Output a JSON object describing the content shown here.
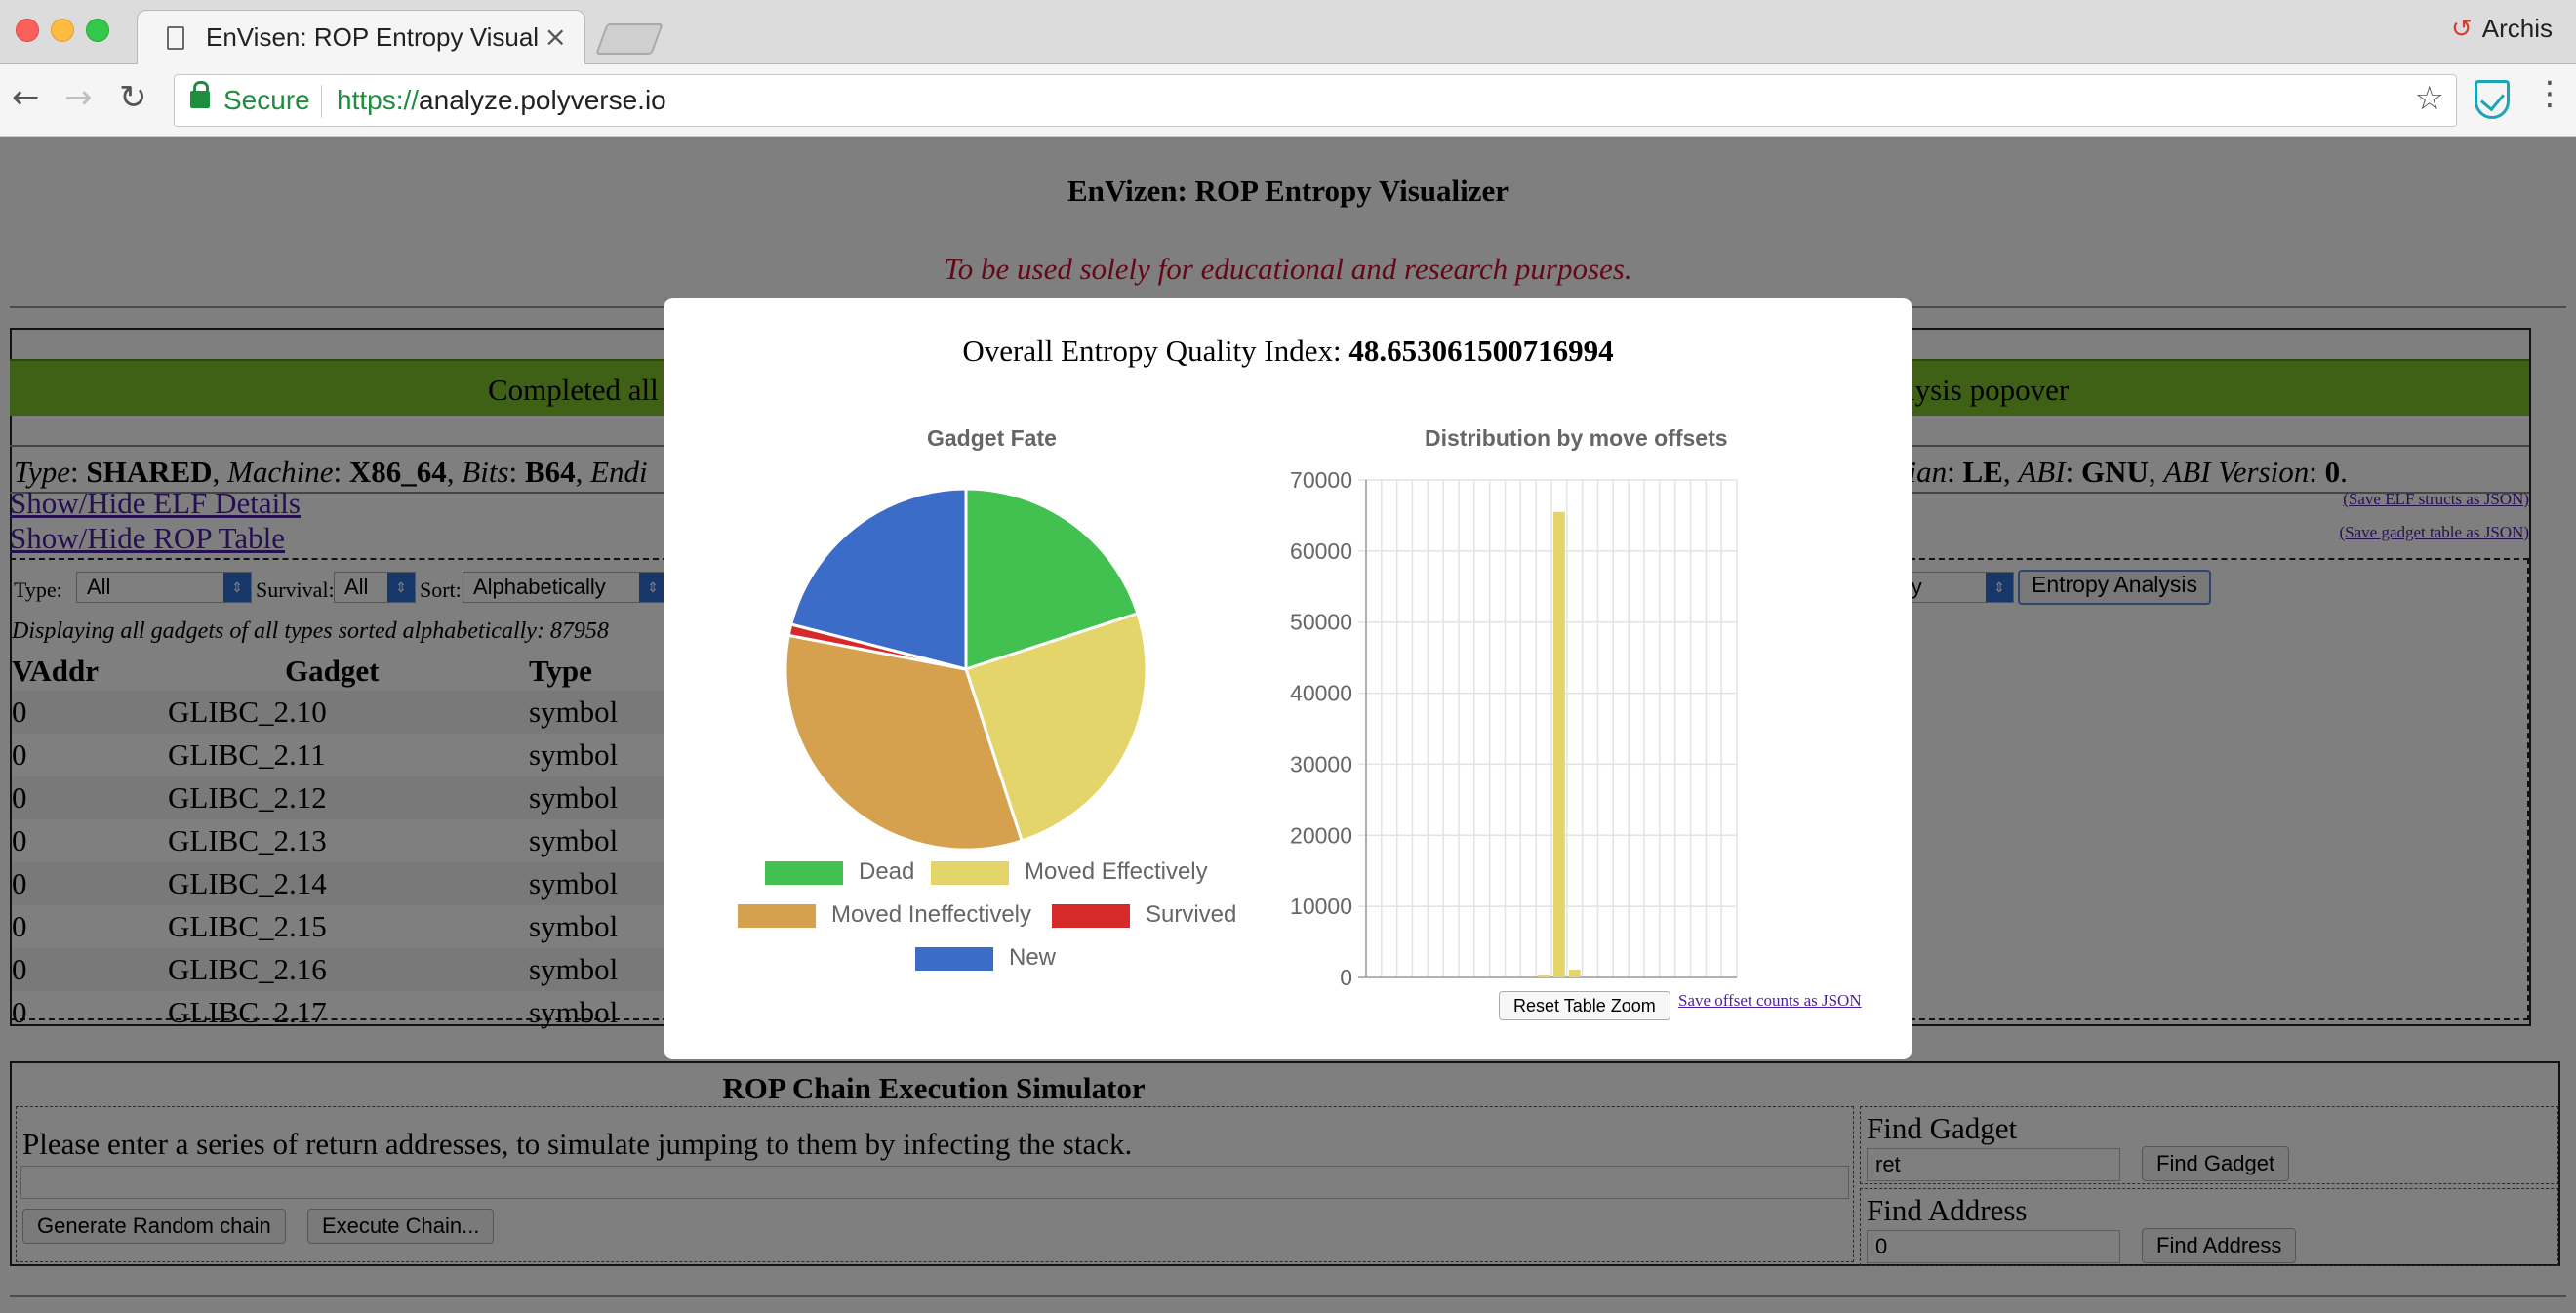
{
  "browser": {
    "tab_title": "EnVisen: ROP Entropy Visualizer",
    "tab_close": "×",
    "profile_name": "Archis",
    "secure_label": "Secure",
    "url_scheme": "https://",
    "url_host": "analyze.polyverse.io",
    "icons": [
      "document-icon",
      "back-arrow-icon",
      "forward-arrow-icon",
      "reload-icon",
      "lock-icon",
      "star-icon",
      "shield-extension-icon",
      "menu-dots-icon"
    ]
  },
  "page": {
    "title": "EnVizen: ROP Entropy Visualizer",
    "subtitle": "To be used solely for educational and research purposes.",
    "status_left": "Completed all",
    "status_right": "lysis popover",
    "meta_left": {
      "type_label": "Type",
      "type_value": "SHARED",
      "machine_label": "Machine",
      "machine_value": "X86_64",
      "bits_label": "Bits",
      "bits_value": "B64",
      "endian_partial": "Endi"
    },
    "meta_right": {
      "endian_tail": "dian",
      "endian_value": "LE",
      "abi_label": "ABI",
      "abi_value": "GNU",
      "abi_version_label": "ABI Version",
      "abi_version_value": "0"
    },
    "links": {
      "show_elf": "Show/Hide ELF Details",
      "show_rop": "Show/Hide ROP Table",
      "save_elf": "(Save ELF structs as JSON)",
      "save_table": "(Save gadget table as JSON)"
    },
    "filters": {
      "type_label": "Type:",
      "type_value": "All",
      "survival_label": "Survival:",
      "survival_value": "All",
      "sort_label": "Sort:",
      "sort_value": "Alphabetically",
      "partial_select": "lly",
      "entropy_button": "Entropy Analysis"
    },
    "displaying": "Displaying all gadgets of all types sorted alphabetically: 87958",
    "table": {
      "headers": [
        "VAddr",
        "Gadget",
        "Type"
      ],
      "rows": [
        {
          "vaddr": "0",
          "gadget": "GLIBC_2.10",
          "type": "symbol"
        },
        {
          "vaddr": "0",
          "gadget": "GLIBC_2.11",
          "type": "symbol"
        },
        {
          "vaddr": "0",
          "gadget": "GLIBC_2.12",
          "type": "symbol"
        },
        {
          "vaddr": "0",
          "gadget": "GLIBC_2.13",
          "type": "symbol"
        },
        {
          "vaddr": "0",
          "gadget": "GLIBC_2.14",
          "type": "symbol"
        },
        {
          "vaddr": "0",
          "gadget": "GLIBC_2.15",
          "type": "symbol"
        },
        {
          "vaddr": "0",
          "gadget": "GLIBC_2.16",
          "type": "symbol"
        },
        {
          "vaddr": "0",
          "gadget": "GLIBC_2.17",
          "type": "symbol"
        }
      ]
    },
    "simulator": {
      "title": "ROP Chain Execution Simulator",
      "instructions": "Please enter a series of return addresses, to simulate jumping to them by infecting the stack.",
      "input_value": "",
      "random_button": "Generate Random chain",
      "execute_button": "Execute Chain...",
      "find_gadget_label": "Find Gadget",
      "find_gadget_value": "ret",
      "find_gadget_button": "Find Gadget",
      "find_address_label": "Find Address",
      "find_address_value": "0",
      "find_address_button": "Find Address"
    }
  },
  "modal": {
    "heading_label": "Overall Entropy Quality Index:",
    "heading_value": "48.653061500716994",
    "reset_button": "Reset Table Zoom",
    "save_offsets": "Save offset counts as JSON"
  },
  "chart_data": [
    {
      "type": "pie",
      "title": "Gadget Fate",
      "labels": [
        "Dead",
        "Moved Effectively",
        "Moved Ineffectively",
        "Survived",
        "New"
      ],
      "values": [
        20,
        25,
        33,
        1,
        21
      ],
      "colors": [
        "#42c150",
        "#e4d56a",
        "#d6a14f",
        "#d62a2a",
        "#3b6cc8"
      ],
      "legend_position": "bottom"
    },
    {
      "type": "bar",
      "title": "Distribution by move offsets",
      "ylim": [
        0,
        70000
      ],
      "yticks": [
        "0",
        "10000",
        "20000",
        "30000",
        "40000",
        "50000",
        "60000",
        "70000"
      ],
      "num_bins": 24,
      "values": [
        0,
        0,
        0,
        0,
        0,
        0,
        0,
        0,
        0,
        0,
        0,
        300,
        65500,
        1100,
        0,
        0,
        0,
        0,
        0,
        0,
        0,
        0,
        0,
        0
      ],
      "color": "#e4d56a",
      "grid": true
    }
  ]
}
